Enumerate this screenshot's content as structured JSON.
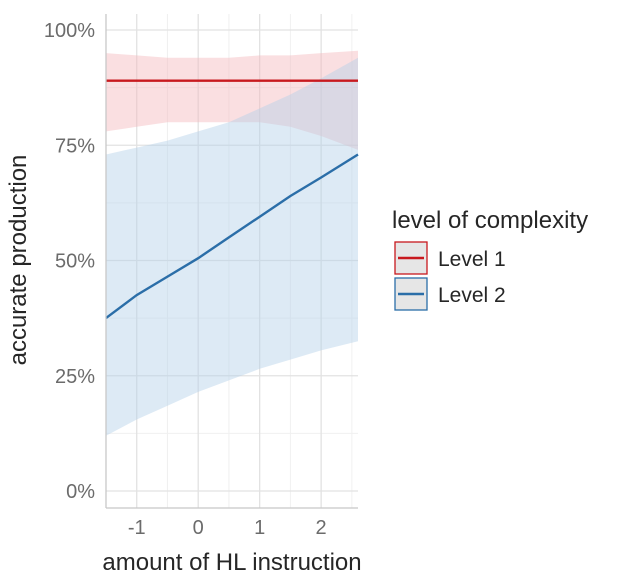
{
  "chart_data": {
    "type": "line",
    "xlabel": "amount of HL instruction",
    "ylabel": "accurate production",
    "xlim": [
      -1.5,
      2.6
    ],
    "ylim": [
      0,
      1
    ],
    "x_ticks": [
      -1,
      0,
      1,
      2
    ],
    "x_tick_labels": [
      "-1",
      "0",
      "1",
      "2"
    ],
    "y_ticks": [
      0,
      0.25,
      0.5,
      0.75,
      1
    ],
    "y_tick_labels": [
      "0%",
      "25%",
      "50%",
      "75%",
      "100%"
    ],
    "grid": true,
    "legend": {
      "title": "level of complexity",
      "position": "right"
    },
    "series": [
      {
        "name": "Level 1",
        "color": "#c8191e",
        "band_color": "#f4b8bc",
        "x": [
          -1.5,
          -1.0,
          -0.5,
          0.0,
          0.5,
          1.0,
          1.5,
          2.0,
          2.6
        ],
        "y": [
          0.89,
          0.89,
          0.89,
          0.89,
          0.89,
          0.89,
          0.89,
          0.89,
          0.89
        ],
        "lower": [
          0.78,
          0.79,
          0.8,
          0.8,
          0.8,
          0.8,
          0.79,
          0.77,
          0.74
        ],
        "upper": [
          0.95,
          0.945,
          0.94,
          0.94,
          0.94,
          0.945,
          0.945,
          0.95,
          0.955
        ]
      },
      {
        "name": "Level 2",
        "color": "#2b6ea8",
        "band_color": "#b3d0e8",
        "x": [
          -1.5,
          -1.0,
          -0.5,
          0.0,
          0.5,
          1.0,
          1.5,
          2.0,
          2.6
        ],
        "y": [
          0.375,
          0.425,
          0.465,
          0.505,
          0.55,
          0.595,
          0.64,
          0.68,
          0.73
        ],
        "lower": [
          0.12,
          0.155,
          0.185,
          0.215,
          0.24,
          0.265,
          0.285,
          0.305,
          0.325
        ],
        "upper": [
          0.73,
          0.745,
          0.76,
          0.78,
          0.8,
          0.83,
          0.86,
          0.895,
          0.94
        ]
      }
    ]
  }
}
